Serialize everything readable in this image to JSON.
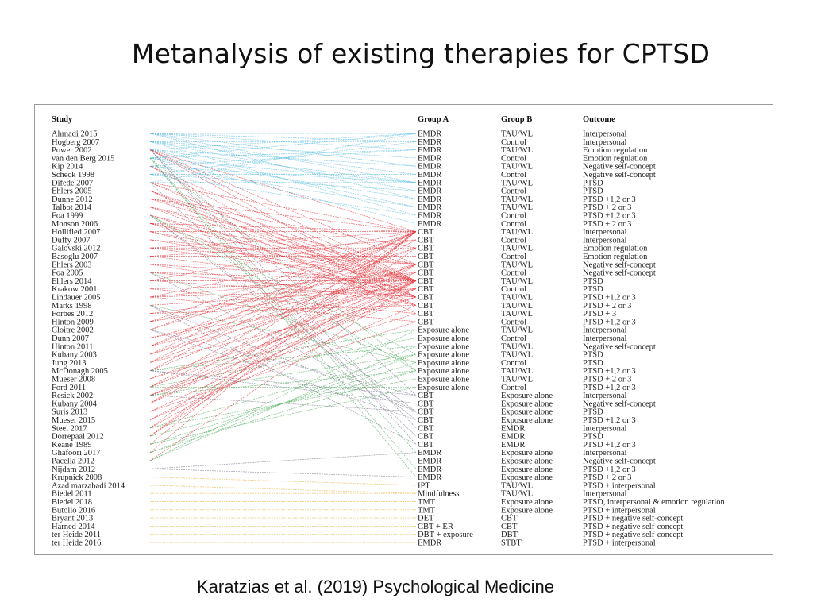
{
  "title": "Metanalysis of existing therapies for CPTSD",
  "caption": "Karatzias et al. (2019) Psychological Medicine",
  "headers": {
    "study": "Study",
    "groupA": "Group A",
    "groupB": "Group B",
    "outcome": "Outcome"
  },
  "colors": {
    "emdr": "#5bbde0",
    "cbt": "#e8343c",
    "exposure": "#4fae5d",
    "cbt_vs": "#8a8a9a",
    "other": "#e9c46a"
  },
  "studies": [
    "Ahmadi 2015",
    "Hogberg 2007",
    "Power 2002",
    "van den Berg 2015",
    "Kip 2014",
    "Scheck 1998",
    "Difede 2007",
    "Ehlers 2005",
    "Dunne 2012",
    "Talbot 2014",
    "Foa 1999",
    "Monson 2006",
    "Hollified 2007",
    "Duffy 2007",
    "Galovski 2012",
    "Basoglu 2007",
    "Ehlers 2003",
    "Foa 2005",
    "Ehlers 2014",
    "Krakow 2001",
    "Lindauer 2005",
    "Marks 1998",
    "Forbes 2012",
    "Hinton 2009",
    "Cloitre 2002",
    "Dunn 2007",
    "Hinton 2011",
    "Kubany 2003",
    "Jung 2013",
    "McDonagh 2005",
    "Mueser 2008",
    "Ford 2011",
    "Resick 2002",
    "Kubany 2004",
    "Suris 2013",
    "Mueser 2015",
    "Steel 2017",
    "Dorrepaal 2012",
    "Keane 1989",
    "Ghafoori 2017",
    "Pacella 2012",
    "Nijdam 2012",
    "Krupnick 2008",
    "Azad marzabadi 2014",
    "Biedel 2011",
    "Biedel 2018",
    "Butollo 2016",
    "Bryant 2013",
    "Harned 2014",
    "ter Heide 2011",
    "ter Heide 2016"
  ],
  "comparisons": [
    {
      "a": "EMDR",
      "b": "TAU/WL",
      "o": "Interpersonal"
    },
    {
      "a": "EMDR",
      "b": "Control",
      "o": "Interpersonal"
    },
    {
      "a": "EMDR",
      "b": "TAU/WL",
      "o": "Emotion regulation"
    },
    {
      "a": "EMDR",
      "b": "Control",
      "o": "Emotion regulation"
    },
    {
      "a": "EMDR",
      "b": "TAU/WL",
      "o": "Negative self-concept"
    },
    {
      "a": "EMDR",
      "b": "Control",
      "o": "Negative self-concept"
    },
    {
      "a": "EMDR",
      "b": "TAU/WL",
      "o": "PTSD"
    },
    {
      "a": "EMDR",
      "b": "Control",
      "o": "PTSD"
    },
    {
      "a": "EMDR",
      "b": "TAU/WL",
      "o": "PTSD +1,2 or 3"
    },
    {
      "a": "EMDR",
      "b": "TAU/WL",
      "o": "PTSD + 2 or 3"
    },
    {
      "a": "EMDR",
      "b": "Control",
      "o": "PTSD +1,2 or 3"
    },
    {
      "a": "EMDR",
      "b": "Control",
      "o": "PTSD + 2 or 3"
    },
    {
      "a": "CBT",
      "b": "TAU/WL",
      "o": "Interpersonal"
    },
    {
      "a": "CBT",
      "b": "Control",
      "o": "Interpersonal"
    },
    {
      "a": "CBT",
      "b": "TAU/WL",
      "o": "Emotion regulation"
    },
    {
      "a": "CBT",
      "b": "Control",
      "o": "Emotion regulation"
    },
    {
      "a": "CBT",
      "b": "TAU/WL",
      "o": "Negative self-concept"
    },
    {
      "a": "CBT",
      "b": "Control",
      "o": "Negative self-concept"
    },
    {
      "a": "CBT",
      "b": "TAU/WL",
      "o": "PTSD"
    },
    {
      "a": "CBT",
      "b": "Control",
      "o": "PTSD"
    },
    {
      "a": "CBT",
      "b": "TAU/WL",
      "o": "PTSD +1,2 or 3"
    },
    {
      "a": "CBT",
      "b": "TAU/WL",
      "o": "PTSD + 2 or 3"
    },
    {
      "a": "CBT",
      "b": "TAU/WL",
      "o": "PTSD + 3"
    },
    {
      "a": "CBT",
      "b": "Control",
      "o": "PTSD +1,2 or 3"
    },
    {
      "a": "Exposure alone",
      "b": "TAU/WL",
      "o": "Interpersonal"
    },
    {
      "a": "Exposure alone",
      "b": "Control",
      "o": "Interpersonal"
    },
    {
      "a": "Exposure alone",
      "b": "TAU/WL",
      "o": "Negative self-concept"
    },
    {
      "a": "Exposure alone",
      "b": "TAU/WL",
      "o": "PTSD"
    },
    {
      "a": "Exposure alone",
      "b": "Control",
      "o": "PTSD"
    },
    {
      "a": "Exposure alone",
      "b": "TAU/WL",
      "o": "PTSD +1,2 or 3"
    },
    {
      "a": "Exposure alone",
      "b": "TAU/WL",
      "o": "PTSD + 2 or 3"
    },
    {
      "a": "Exposure alone",
      "b": "Control",
      "o": "PTSD +1,2 or 3"
    },
    {
      "a": "CBT",
      "b": "Exposure alone",
      "o": "Interpersonal"
    },
    {
      "a": "CBT",
      "b": "Exposure alone",
      "o": "Negative self-concept"
    },
    {
      "a": "CBT",
      "b": "Exposure alone",
      "o": "PTSD"
    },
    {
      "a": "CBT",
      "b": "Exposure alone",
      "o": "PTSD +1,2 or 3"
    },
    {
      "a": "CBT",
      "b": "EMDR",
      "o": "Interpersonal"
    },
    {
      "a": "CBT",
      "b": "EMDR",
      "o": "PTSD"
    },
    {
      "a": "CBT",
      "b": "EMDR",
      "o": "PTSD +1,2 or 3"
    },
    {
      "a": "EMDR",
      "b": "Exposure alone",
      "o": "Interpersonal"
    },
    {
      "a": "EMDR",
      "b": "Exposure alone",
      "o": "Negative self-concept"
    },
    {
      "a": "EMDR",
      "b": "Exposure alone",
      "o": "PTSD +1,2 or 3"
    },
    {
      "a": "EMDR",
      "b": "Exposure alone",
      "o": "PTSD + 2 or 3"
    },
    {
      "a": "IPT",
      "b": "TAU/WL",
      "o": "PTSD + interpersonal"
    },
    {
      "a": "Mindfulness",
      "b": "TAU/WL",
      "o": "Interpersonal"
    },
    {
      "a": "TMT",
      "b": "Exposure alone",
      "o": "PTSD, interpersonal & emotion regulation"
    },
    {
      "a": "TMT",
      "b": "Exposure alone",
      "o": "PTSD + interpersonal"
    },
    {
      "a": "DET",
      "b": "CBT",
      "o": "PTSD + negative self-concept"
    },
    {
      "a": "CBT + ER",
      "b": "CBT",
      "o": "PTSD + negative self-concept"
    },
    {
      "a": "DBT + exposure",
      "b": "DBT",
      "o": "PTSD + negative self-concept"
    },
    {
      "a": "EMDR",
      "b": "STBT",
      "o": "PTSD + interpersonal"
    }
  ],
  "links": [
    [
      0,
      0,
      "emdr"
    ],
    [
      0,
      1,
      "emdr"
    ],
    [
      0,
      2,
      "emdr"
    ],
    [
      0,
      4,
      "emdr"
    ],
    [
      0,
      6,
      "emdr"
    ],
    [
      0,
      8,
      "emdr"
    ],
    [
      1,
      1,
      "emdr"
    ],
    [
      1,
      3,
      "emdr"
    ],
    [
      1,
      5,
      "emdr"
    ],
    [
      1,
      7,
      "emdr"
    ],
    [
      1,
      10,
      "emdr"
    ],
    [
      2,
      0,
      "emdr"
    ],
    [
      2,
      4,
      "emdr"
    ],
    [
      2,
      6,
      "emdr"
    ],
    [
      2,
      9,
      "emdr"
    ],
    [
      2,
      12,
      "cbt"
    ],
    [
      2,
      16,
      "cbt"
    ],
    [
      2,
      18,
      "cbt"
    ],
    [
      2,
      20,
      "cbt"
    ],
    [
      2,
      32,
      "cbt_vs"
    ],
    [
      2,
      36,
      "cbt_vs"
    ],
    [
      2,
      38,
      "cbt_vs"
    ],
    [
      3,
      0,
      "emdr"
    ],
    [
      3,
      2,
      "emdr"
    ],
    [
      3,
      6,
      "emdr"
    ],
    [
      3,
      8,
      "emdr"
    ],
    [
      3,
      11,
      "emdr"
    ],
    [
      3,
      29,
      "exposure"
    ],
    [
      3,
      39,
      "exposure"
    ],
    [
      3,
      41,
      "exposure"
    ],
    [
      3,
      42,
      "exposure"
    ],
    [
      4,
      2,
      "emdr"
    ],
    [
      4,
      6,
      "emdr"
    ],
    [
      4,
      9,
      "emdr"
    ],
    [
      4,
      18,
      "cbt"
    ],
    [
      4,
      21,
      "cbt"
    ],
    [
      5,
      1,
      "emdr"
    ],
    [
      5,
      5,
      "emdr"
    ],
    [
      5,
      7,
      "emdr"
    ],
    [
      5,
      10,
      "emdr"
    ],
    [
      6,
      0,
      "emdr"
    ],
    [
      6,
      6,
      "emdr"
    ],
    [
      6,
      12,
      "cbt"
    ],
    [
      6,
      18,
      "cbt"
    ],
    [
      6,
      20,
      "cbt"
    ],
    [
      6,
      37,
      "cbt_vs"
    ],
    [
      7,
      18,
      "cbt"
    ],
    [
      7,
      20,
      "cbt"
    ],
    [
      7,
      22,
      "cbt"
    ],
    [
      8,
      12,
      "cbt"
    ],
    [
      8,
      14,
      "cbt"
    ],
    [
      8,
      18,
      "cbt"
    ],
    [
      9,
      16,
      "cbt"
    ],
    [
      9,
      18,
      "cbt"
    ],
    [
      9,
      21,
      "cbt"
    ],
    [
      10,
      18,
      "cbt"
    ],
    [
      10,
      20,
      "cbt"
    ],
    [
      10,
      27,
      "exposure"
    ],
    [
      10,
      29,
      "exposure"
    ],
    [
      10,
      34,
      "cbt_vs"
    ],
    [
      10,
      35,
      "cbt_vs"
    ],
    [
      11,
      12,
      "cbt"
    ],
    [
      11,
      16,
      "cbt"
    ],
    [
      11,
      18,
      "cbt"
    ],
    [
      11,
      21,
      "cbt"
    ],
    [
      12,
      12,
      "cbt"
    ],
    [
      12,
      18,
      "cbt"
    ],
    [
      12,
      20,
      "cbt"
    ],
    [
      13,
      16,
      "cbt"
    ],
    [
      13,
      18,
      "cbt"
    ],
    [
      14,
      12,
      "cbt"
    ],
    [
      14,
      14,
      "cbt"
    ],
    [
      14,
      16,
      "cbt"
    ],
    [
      14,
      18,
      "cbt"
    ],
    [
      15,
      13,
      "cbt"
    ],
    [
      15,
      15,
      "cbt"
    ],
    [
      15,
      19,
      "cbt"
    ],
    [
      16,
      16,
      "cbt"
    ],
    [
      16,
      18,
      "cbt"
    ],
    [
      16,
      21,
      "cbt"
    ],
    [
      17,
      18,
      "cbt"
    ],
    [
      17,
      20,
      "cbt"
    ],
    [
      17,
      28,
      "exposure"
    ],
    [
      17,
      34,
      "cbt_vs"
    ],
    [
      18,
      12,
      "cbt"
    ],
    [
      18,
      18,
      "cbt"
    ],
    [
      18,
      20,
      "cbt"
    ],
    [
      19,
      18,
      "cbt"
    ],
    [
      19,
      22,
      "cbt"
    ],
    [
      20,
      13,
      "cbt"
    ],
    [
      20,
      17,
      "cbt"
    ],
    [
      20,
      19,
      "cbt"
    ],
    [
      20,
      23,
      "cbt"
    ],
    [
      21,
      19,
      "cbt"
    ],
    [
      21,
      28,
      "exposure"
    ],
    [
      21,
      34,
      "cbt_vs"
    ],
    [
      21,
      38,
      "cbt_vs"
    ],
    [
      22,
      18,
      "cbt"
    ],
    [
      22,
      21,
      "cbt"
    ],
    [
      23,
      12,
      "cbt"
    ],
    [
      23,
      16,
      "cbt"
    ],
    [
      23,
      18,
      "cbt"
    ],
    [
      24,
      12,
      "cbt"
    ],
    [
      24,
      14,
      "cbt"
    ],
    [
      24,
      24,
      "exposure"
    ],
    [
      24,
      32,
      "cbt_vs"
    ],
    [
      24,
      35,
      "cbt_vs"
    ],
    [
      25,
      17,
      "cbt"
    ],
    [
      25,
      19,
      "cbt"
    ],
    [
      26,
      12,
      "cbt"
    ],
    [
      26,
      14,
      "cbt"
    ],
    [
      26,
      18,
      "cbt"
    ],
    [
      27,
      12,
      "cbt"
    ],
    [
      27,
      16,
      "cbt"
    ],
    [
      27,
      18,
      "cbt"
    ],
    [
      28,
      12,
      "cbt"
    ],
    [
      28,
      16,
      "cbt"
    ],
    [
      28,
      20,
      "cbt"
    ],
    [
      29,
      12,
      "cbt"
    ],
    [
      29,
      16,
      "cbt"
    ],
    [
      29,
      24,
      "exposure"
    ],
    [
      29,
      26,
      "exposure"
    ],
    [
      29,
      32,
      "cbt_vs"
    ],
    [
      29,
      33,
      "cbt_vs"
    ],
    [
      30,
      18,
      "cbt"
    ],
    [
      30,
      20,
      "cbt"
    ],
    [
      31,
      13,
      "cbt"
    ],
    [
      31,
      17,
      "cbt"
    ],
    [
      31,
      19,
      "cbt"
    ],
    [
      31,
      25,
      "exposure"
    ],
    [
      31,
      31,
      "exposure"
    ],
    [
      32,
      18,
      "cbt"
    ],
    [
      32,
      20,
      "cbt"
    ],
    [
      32,
      22,
      "cbt"
    ],
    [
      32,
      27,
      "exposure"
    ],
    [
      32,
      29,
      "exposure"
    ],
    [
      32,
      34,
      "cbt_vs"
    ],
    [
      33,
      12,
      "cbt"
    ],
    [
      33,
      16,
      "cbt"
    ],
    [
      33,
      18,
      "cbt"
    ],
    [
      34,
      19,
      "cbt"
    ],
    [
      34,
      23,
      "cbt"
    ],
    [
      35,
      18,
      "cbt"
    ],
    [
      35,
      21,
      "cbt"
    ],
    [
      36,
      12,
      "cbt"
    ],
    [
      36,
      18,
      "cbt"
    ],
    [
      36,
      27,
      "exposure"
    ],
    [
      36,
      30,
      "exposure"
    ],
    [
      37,
      12,
      "cbt"
    ],
    [
      37,
      14,
      "cbt"
    ],
    [
      37,
      16,
      "cbt"
    ],
    [
      37,
      29,
      "exposure"
    ],
    [
      38,
      28,
      "exposure"
    ],
    [
      38,
      31,
      "exposure"
    ],
    [
      38,
      12,
      "cbt"
    ],
    [
      39,
      27,
      "exposure"
    ],
    [
      39,
      29,
      "exposure"
    ],
    [
      39,
      12,
      "cbt"
    ],
    [
      40,
      24,
      "exposure"
    ],
    [
      40,
      26,
      "exposure"
    ],
    [
      40,
      18,
      "cbt"
    ],
    [
      41,
      39,
      "cbt_vs"
    ],
    [
      41,
      41,
      "cbt_vs"
    ],
    [
      41,
      42,
      "cbt_vs"
    ],
    [
      42,
      43,
      "other"
    ],
    [
      43,
      44,
      "other"
    ],
    [
      44,
      44,
      "other"
    ],
    [
      45,
      45,
      "other"
    ],
    [
      46,
      46,
      "other"
    ],
    [
      47,
      47,
      "other"
    ],
    [
      48,
      48,
      "other"
    ],
    [
      49,
      49,
      "other"
    ],
    [
      50,
      50,
      "other"
    ]
  ]
}
